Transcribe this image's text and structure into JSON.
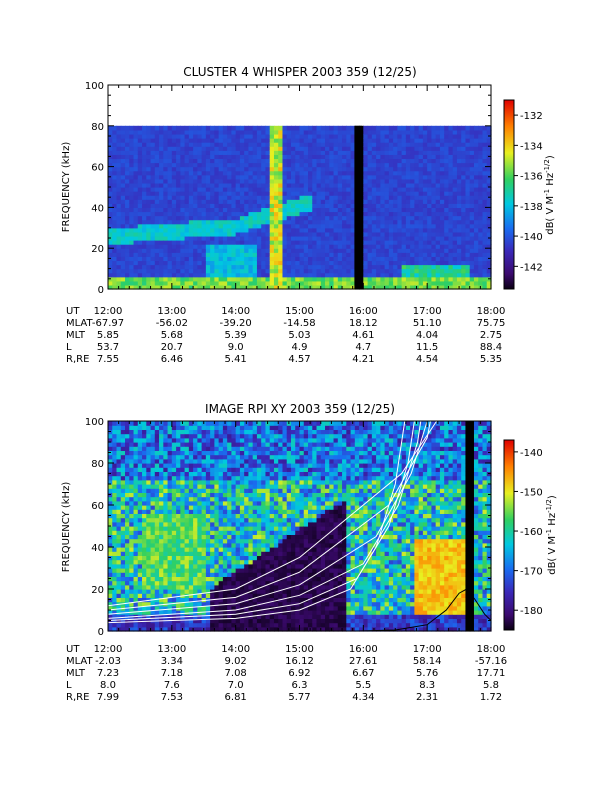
{
  "chart_data": [
    {
      "type": "heatmap",
      "title": "CLUSTER 4 WHISPER 2003 359 (12/25)",
      "ylabel": "FREQUENCY (kHz)",
      "ylim": [
        0,
        100
      ],
      "ytick_values": [
        0,
        20,
        40,
        60,
        80,
        100
      ],
      "ytick_labels": [
        "0",
        "20",
        "40",
        "60",
        "80",
        "100"
      ],
      "xlim_hours": [
        12,
        18
      ],
      "xtick_labels": [
        "12:00",
        "13:00",
        "14:00",
        "15:00",
        "16:00",
        "17:00",
        "18:00"
      ],
      "data_max_frequency_khz": 80,
      "colorbar": {
        "label": "dB( V M⁻¹ Hz⁻¹₂ )",
        "label_parts": [
          "dB( V M",
          "-1",
          " Hz",
          "-1/2",
          ")"
        ],
        "range": [
          -143.5,
          -131
        ],
        "tick_values": [
          -132,
          -134,
          -136,
          -138,
          -140,
          -142
        ],
        "tick_labels": [
          "-132",
          "-134",
          "-136",
          "-138",
          "-140",
          "-142"
        ]
      },
      "ephemeris": {
        "labels": [
          "UT",
          "MLAT",
          "MLT",
          "L",
          "R,RE"
        ],
        "rows": [
          [
            "12:00",
            "13:00",
            "14:00",
            "15:00",
            "16:00",
            "17:00",
            "18:00"
          ],
          [
            "-67.97",
            "-56.02",
            "-39.20",
            "-14.58",
            "18.12",
            "51.10",
            "75.75"
          ],
          [
            "5.85",
            "5.68",
            "5.39",
            "5.03",
            "4.61",
            "4.04",
            "2.75"
          ],
          [
            "53.7",
            "20.7",
            "9.0",
            "4.9",
            "4.7",
            "11.5",
            "88.4"
          ],
          [
            "7.55",
            "6.46",
            "5.41",
            "4.57",
            "4.21",
            "4.54",
            "5.35"
          ]
        ]
      },
      "data_gaps_hours": [
        [
          15.86,
          15.98
        ]
      ],
      "features": [
        {
          "kind": "broadband burst",
          "start_hour": 14.47,
          "end_hour": 14.72,
          "freq_range_khz": [
            0,
            80
          ]
        },
        {
          "kind": "emission band",
          "freq_khz_at_12h": 25,
          "freq_khz_at_14h": 30,
          "freq_khz_at_15h": 45
        }
      ]
    },
    {
      "type": "heatmap",
      "title": "IMAGE RPI XY 2003 359 (12/25)",
      "ylabel": "FREQUENCY (kHz)",
      "ylim": [
        0,
        100
      ],
      "ytick_values": [
        0,
        20,
        40,
        60,
        80,
        100
      ],
      "ytick_labels": [
        "0",
        "20",
        "40",
        "60",
        "80",
        "100"
      ],
      "xlim_hours": [
        12,
        18
      ],
      "xtick_labels": [
        "12:00",
        "13:00",
        "14:00",
        "15:00",
        "16:00",
        "17:00",
        "18:00"
      ],
      "colorbar": {
        "label": "dB( V M⁻¹ Hz⁻¹₂ )",
        "label_parts": [
          "dB( V M",
          "-1",
          " Hz",
          "-1/2",
          ")"
        ],
        "range": [
          -185,
          -137
        ],
        "tick_values": [
          -140,
          -150,
          -160,
          -170,
          -180
        ],
        "tick_labels": [
          "-140",
          "-150",
          "-160",
          "-170",
          "-180"
        ]
      },
      "ephemeris": {
        "labels": [
          "UT",
          "MLAT",
          "MLT",
          "L",
          "R,RE"
        ],
        "rows": [
          [
            "12:00",
            "13:00",
            "14:00",
            "15:00",
            "16:00",
            "17:00",
            "18:00"
          ],
          [
            "-2.03",
            "3.34",
            "9.02",
            "16.12",
            "27.61",
            "58.14",
            "-57.16"
          ],
          [
            "7.23",
            "7.18",
            "7.08",
            "6.92",
            "6.67",
            "5.76",
            "17.71"
          ],
          [
            "8.0",
            "7.6",
            "7.0",
            "6.3",
            "5.5",
            "8.3",
            "5.8"
          ],
          [
            "7.99",
            "7.53",
            "6.81",
            "5.77",
            "4.34",
            "2.31",
            "1.72"
          ]
        ]
      },
      "data_gaps_hours": [
        [
          17.6,
          17.68
        ]
      ],
      "overlay_curves": [
        {
          "color": "#ffffff",
          "points": [
            [
              12,
              4
            ],
            [
              14,
              6
            ],
            [
              15,
              10
            ],
            [
              15.8,
              20
            ],
            [
              16.2,
              40
            ],
            [
              16.5,
              70
            ],
            [
              16.65,
              100
            ]
          ]
        },
        {
          "color": "#ffffff",
          "points": [
            [
              12,
              5
            ],
            [
              14,
              8
            ],
            [
              15,
              13
            ],
            [
              15.9,
              25
            ],
            [
              16.4,
              50
            ],
            [
              16.7,
              80
            ],
            [
              16.8,
              100
            ]
          ]
        },
        {
          "color": "#ffffff",
          "points": [
            [
              12,
              6
            ],
            [
              14,
              10
            ],
            [
              15,
              17
            ],
            [
              16,
              32
            ],
            [
              16.55,
              60
            ],
            [
              16.85,
              90
            ],
            [
              16.9,
              100
            ]
          ]
        },
        {
          "color": "#ffffff",
          "points": [
            [
              12,
              8
            ],
            [
              14,
              13
            ],
            [
              15,
              22
            ],
            [
              16.2,
              45
            ],
            [
              16.75,
              75
            ],
            [
              17.0,
              100
            ]
          ]
        },
        {
          "color": "#ffffff",
          "points": [
            [
              12,
              10
            ],
            [
              14,
              16
            ],
            [
              15,
              28
            ],
            [
              16.4,
              60
            ],
            [
              17.0,
              92
            ],
            [
              17.05,
              100
            ]
          ]
        },
        {
          "color": "#ffffff",
          "points": [
            [
              12,
              12
            ],
            [
              14,
              20
            ],
            [
              15,
              35
            ],
            [
              16.6,
              75
            ],
            [
              17.15,
              100
            ]
          ]
        },
        {
          "color": "#000000",
          "points": [
            [
              15.9,
              0
            ],
            [
              16.5,
              0.5
            ],
            [
              17.0,
              3
            ],
            [
              17.3,
              10
            ],
            [
              17.5,
              18
            ],
            [
              17.62,
              20
            ],
            [
              17.75,
              15
            ],
            [
              17.9,
              8
            ],
            [
              18.0,
              5
            ]
          ]
        }
      ],
      "features": [
        {
          "kind": "low-intensity region",
          "start_hour": 13.6,
          "end_hour": 15.7,
          "freq_range_khz": [
            0,
            60
          ]
        },
        {
          "kind": "high-intensity band",
          "start_hour": 16.8,
          "end_hour": 17.6,
          "freq_range_khz": [
            10,
            40
          ]
        }
      ]
    }
  ]
}
